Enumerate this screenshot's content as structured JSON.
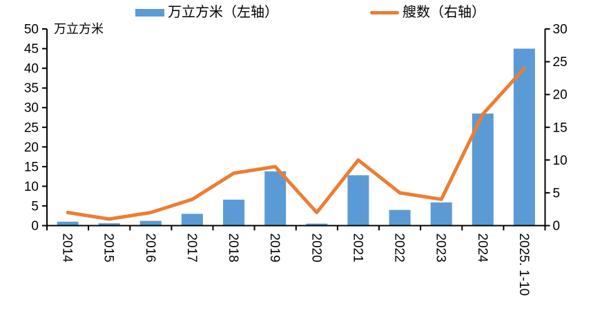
{
  "colors": {
    "bar": "#5B9BD5",
    "line": "#ED7D31",
    "axis": "#000000",
    "text": "#000000",
    "background": "#FFFFFF"
  },
  "legend": {
    "items": [
      {
        "label": "万立方米（左轴）",
        "series": "bar"
      },
      {
        "label": "艘数（右轴）",
        "series": "line"
      }
    ]
  },
  "chart_data": {
    "type": "combo-bar-line",
    "categories": [
      "2014",
      "2015",
      "2016",
      "2017",
      "2018",
      "2019",
      "2020",
      "2021",
      "2022",
      "2023",
      "2024",
      "2025. 1-10"
    ],
    "series": [
      {
        "name": "万立方米（左轴）",
        "type": "bar",
        "axis": "left",
        "color": "#5B9BD5",
        "values": [
          1.0,
          0.6,
          1.2,
          3.0,
          6.6,
          13.8,
          0.5,
          12.8,
          4.0,
          5.9,
          28.5,
          45.0
        ]
      },
      {
        "name": "艘数（右轴）",
        "type": "line",
        "axis": "right",
        "color": "#ED7D31",
        "values": [
          2,
          1,
          2,
          4,
          8,
          9,
          2,
          10,
          5,
          4,
          17,
          24
        ]
      }
    ],
    "left_axis": {
      "label": "万立方米",
      "min": 0,
      "max": 50,
      "step": 5
    },
    "right_axis": {
      "label": "",
      "min": 0,
      "max": 30,
      "step": 5
    },
    "grid": false,
    "legend_position": "top",
    "x_label_rotation": 90
  }
}
